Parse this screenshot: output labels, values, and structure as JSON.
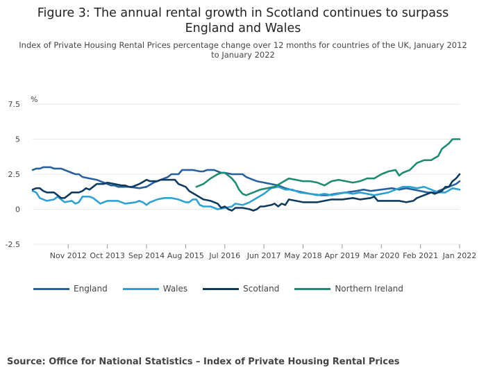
{
  "chart_data": {
    "type": "line",
    "title": "Figure 3: The annual rental growth in Scotland continues to surpass England and Wales",
    "subtitle": "Index of Private Housing Rental Prices percentage change over 12 months for countries of the UK, January 2012 to January 2022",
    "ylabel": "%",
    "xlabel": "",
    "ylim": [
      -2.5,
      7.5
    ],
    "yticks": [
      "-2.5",
      "0",
      "2.5",
      "5",
      "7.5"
    ],
    "yticks_values": [
      -2.5,
      0,
      2.5,
      5,
      7.5
    ],
    "xlim": [
      "2012-01",
      "2022-01"
    ],
    "xticks": [
      {
        "label": "Nov 2012",
        "month": "2012-11"
      },
      {
        "label": "Oct 2013",
        "month": "2013-10"
      },
      {
        "label": "Sep 2014",
        "month": "2014-09"
      },
      {
        "label": "Aug 2015",
        "month": "2015-08"
      },
      {
        "label": "Jul 2016",
        "month": "2016-07"
      },
      {
        "label": "Jun 2017",
        "month": "2017-06"
      },
      {
        "label": "May 2018",
        "month": "2018-05"
      },
      {
        "label": "Apr 2019",
        "month": "2019-04"
      },
      {
        "label": "Mar 2020",
        "month": "2020-03"
      },
      {
        "label": "Feb 2021",
        "month": "2021-02"
      },
      {
        "label": "Jan 2022",
        "month": "2022-01"
      }
    ],
    "grid": true,
    "legend_position": "bottom",
    "series": [
      {
        "name": "England",
        "color": "#27609b",
        "points": [
          [
            "2012-01",
            2.8
          ],
          [
            "2012-02",
            2.9
          ],
          [
            "2012-03",
            2.9
          ],
          [
            "2012-04",
            3.0
          ],
          [
            "2012-05",
            3.0
          ],
          [
            "2012-06",
            3.0
          ],
          [
            "2012-07",
            2.9
          ],
          [
            "2012-09",
            2.9
          ],
          [
            "2012-10",
            2.8
          ],
          [
            "2012-12",
            2.6
          ],
          [
            "2013-01",
            2.5
          ],
          [
            "2013-02",
            2.5
          ],
          [
            "2013-03",
            2.3
          ],
          [
            "2013-05",
            2.2
          ],
          [
            "2013-07",
            2.1
          ],
          [
            "2013-08",
            2.0
          ],
          [
            "2013-09",
            1.9
          ],
          [
            "2013-10",
            1.8
          ],
          [
            "2013-11",
            1.7
          ],
          [
            "2013-12",
            1.7
          ],
          [
            "2014-01",
            1.6
          ],
          [
            "2014-04",
            1.6
          ],
          [
            "2014-07",
            1.5
          ],
          [
            "2014-09",
            1.6
          ],
          [
            "2014-11",
            1.9
          ],
          [
            "2015-01",
            2.1
          ],
          [
            "2015-03",
            2.3
          ],
          [
            "2015-04",
            2.5
          ],
          [
            "2015-06",
            2.5
          ],
          [
            "2015-07",
            2.8
          ],
          [
            "2015-09",
            2.8
          ],
          [
            "2015-10",
            2.8
          ],
          [
            "2015-12",
            2.7
          ],
          [
            "2016-01",
            2.7
          ],
          [
            "2016-02",
            2.8
          ],
          [
            "2016-04",
            2.8
          ],
          [
            "2016-06",
            2.6
          ],
          [
            "2016-07",
            2.6
          ],
          [
            "2016-09",
            2.5
          ],
          [
            "2016-10",
            2.5
          ],
          [
            "2016-12",
            2.5
          ],
          [
            "2017-01",
            2.3
          ],
          [
            "2017-02",
            2.2
          ],
          [
            "2017-04",
            2.0
          ],
          [
            "2017-06",
            1.9
          ],
          [
            "2017-08",
            1.8
          ],
          [
            "2017-10",
            1.7
          ],
          [
            "2017-12",
            1.5
          ],
          [
            "2018-03",
            1.3
          ],
          [
            "2018-05",
            1.2
          ],
          [
            "2018-07",
            1.1
          ],
          [
            "2018-10",
            1.0
          ],
          [
            "2018-12",
            1.0
          ],
          [
            "2019-02",
            1.1
          ],
          [
            "2019-05",
            1.2
          ],
          [
            "2019-08",
            1.3
          ],
          [
            "2019-10",
            1.4
          ],
          [
            "2019-12",
            1.3
          ],
          [
            "2020-03",
            1.4
          ],
          [
            "2020-06",
            1.5
          ],
          [
            "2020-08",
            1.4
          ],
          [
            "2020-10",
            1.5
          ],
          [
            "2020-12",
            1.4
          ],
          [
            "2021-02",
            1.3
          ],
          [
            "2021-04",
            1.2
          ],
          [
            "2021-06",
            1.2
          ],
          [
            "2021-08",
            1.4
          ],
          [
            "2021-10",
            1.6
          ],
          [
            "2021-12",
            1.8
          ],
          [
            "2022-01",
            2.0
          ]
        ]
      },
      {
        "name": "Wales",
        "color": "#2ea1d4",
        "points": [
          [
            "2012-01",
            1.3
          ],
          [
            "2012-02",
            1.2
          ],
          [
            "2012-03",
            0.8
          ],
          [
            "2012-04",
            0.7
          ],
          [
            "2012-05",
            0.6
          ],
          [
            "2012-07",
            0.7
          ],
          [
            "2012-08",
            0.9
          ],
          [
            "2012-09",
            0.7
          ],
          [
            "2012-10",
            0.5
          ],
          [
            "2012-12",
            0.6
          ],
          [
            "2013-01",
            0.4
          ],
          [
            "2013-02",
            0.5
          ],
          [
            "2013-03",
            0.9
          ],
          [
            "2013-05",
            0.9
          ],
          [
            "2013-06",
            0.8
          ],
          [
            "2013-08",
            0.4
          ],
          [
            "2013-10",
            0.6
          ],
          [
            "2013-12",
            0.6
          ],
          [
            "2014-01",
            0.6
          ],
          [
            "2014-03",
            0.4
          ],
          [
            "2014-06",
            0.5
          ],
          [
            "2014-07",
            0.6
          ],
          [
            "2014-08",
            0.5
          ],
          [
            "2014-09",
            0.3
          ],
          [
            "2014-10",
            0.5
          ],
          [
            "2014-12",
            0.7
          ],
          [
            "2015-02",
            0.8
          ],
          [
            "2015-04",
            0.8
          ],
          [
            "2015-06",
            0.7
          ],
          [
            "2015-08",
            0.5
          ],
          [
            "2015-09",
            0.5
          ],
          [
            "2015-10",
            0.7
          ],
          [
            "2015-11",
            0.7
          ],
          [
            "2015-12",
            0.3
          ],
          [
            "2016-01",
            0.2
          ],
          [
            "2016-03",
            0.2
          ],
          [
            "2016-05",
            0.0
          ],
          [
            "2016-07",
            0.1
          ],
          [
            "2016-09",
            0.2
          ],
          [
            "2016-10",
            0.4
          ],
          [
            "2016-12",
            0.3
          ],
          [
            "2017-02",
            0.5
          ],
          [
            "2017-04",
            0.8
          ],
          [
            "2017-06",
            1.1
          ],
          [
            "2017-08",
            1.5
          ],
          [
            "2017-10",
            1.6
          ],
          [
            "2017-12",
            1.4
          ],
          [
            "2018-02",
            1.4
          ],
          [
            "2018-04",
            1.2
          ],
          [
            "2018-07",
            1.1
          ],
          [
            "2018-09",
            1.0
          ],
          [
            "2018-11",
            1.1
          ],
          [
            "2019-01",
            1.0
          ],
          [
            "2019-03",
            1.1
          ],
          [
            "2019-05",
            1.2
          ],
          [
            "2019-07",
            1.1
          ],
          [
            "2019-09",
            1.2
          ],
          [
            "2019-11",
            1.1
          ],
          [
            "2020-01",
            1.0
          ],
          [
            "2020-03",
            1.1
          ],
          [
            "2020-05",
            1.2
          ],
          [
            "2020-07",
            1.4
          ],
          [
            "2020-09",
            1.6
          ],
          [
            "2020-11",
            1.6
          ],
          [
            "2021-01",
            1.5
          ],
          [
            "2021-03",
            1.6
          ],
          [
            "2021-05",
            1.4
          ],
          [
            "2021-07",
            1.2
          ],
          [
            "2021-09",
            1.2
          ],
          [
            "2021-11",
            1.5
          ],
          [
            "2022-01",
            1.4
          ]
        ]
      },
      {
        "name": "Scotland",
        "color": "#0f3b5f",
        "points": [
          [
            "2012-01",
            1.4
          ],
          [
            "2012-02",
            1.5
          ],
          [
            "2012-03",
            1.5
          ],
          [
            "2012-04",
            1.3
          ],
          [
            "2012-05",
            1.2
          ],
          [
            "2012-07",
            1.2
          ],
          [
            "2012-08",
            1.0
          ],
          [
            "2012-09",
            0.8
          ],
          [
            "2012-10",
            0.8
          ],
          [
            "2012-11",
            1.0
          ],
          [
            "2012-12",
            1.2
          ],
          [
            "2013-02",
            1.2
          ],
          [
            "2013-03",
            1.3
          ],
          [
            "2013-04",
            1.5
          ],
          [
            "2013-05",
            1.4
          ],
          [
            "2013-06",
            1.6
          ],
          [
            "2013-07",
            1.8
          ],
          [
            "2013-09",
            1.8
          ],
          [
            "2013-10",
            1.9
          ],
          [
            "2013-12",
            1.8
          ],
          [
            "2014-02",
            1.7
          ],
          [
            "2014-03",
            1.7
          ],
          [
            "2014-04",
            1.6
          ],
          [
            "2014-05",
            1.6
          ],
          [
            "2014-07",
            1.8
          ],
          [
            "2014-09",
            2.1
          ],
          [
            "2014-10",
            2.0
          ],
          [
            "2014-12",
            2.0
          ],
          [
            "2015-01",
            2.1
          ],
          [
            "2015-03",
            2.1
          ],
          [
            "2015-05",
            2.1
          ],
          [
            "2015-06",
            1.8
          ],
          [
            "2015-07",
            1.7
          ],
          [
            "2015-08",
            1.6
          ],
          [
            "2015-09",
            1.3
          ],
          [
            "2015-11",
            1.0
          ],
          [
            "2016-01",
            0.7
          ],
          [
            "2016-03",
            0.6
          ],
          [
            "2016-05",
            0.4
          ],
          [
            "2016-06",
            0.1
          ],
          [
            "2016-07",
            0.2
          ],
          [
            "2016-08",
            0.0
          ],
          [
            "2016-09",
            -0.1
          ],
          [
            "2016-10",
            0.1
          ],
          [
            "2016-12",
            0.1
          ],
          [
            "2017-02",
            0.0
          ],
          [
            "2017-03",
            -0.1
          ],
          [
            "2017-04",
            0.0
          ],
          [
            "2017-05",
            0.2
          ],
          [
            "2017-06",
            0.2
          ],
          [
            "2017-08",
            0.3
          ],
          [
            "2017-09",
            0.4
          ],
          [
            "2017-10",
            0.2
          ],
          [
            "2017-11",
            0.4
          ],
          [
            "2017-12",
            0.3
          ],
          [
            "2018-01",
            0.7
          ],
          [
            "2018-03",
            0.6
          ],
          [
            "2018-05",
            0.5
          ],
          [
            "2018-07",
            0.5
          ],
          [
            "2018-09",
            0.5
          ],
          [
            "2018-11",
            0.6
          ],
          [
            "2019-01",
            0.7
          ],
          [
            "2019-04",
            0.7
          ],
          [
            "2019-07",
            0.8
          ],
          [
            "2019-09",
            0.7
          ],
          [
            "2019-12",
            0.8
          ],
          [
            "2020-01",
            0.9
          ],
          [
            "2020-02",
            0.6
          ],
          [
            "2020-04",
            0.6
          ],
          [
            "2020-06",
            0.6
          ],
          [
            "2020-08",
            0.6
          ],
          [
            "2020-10",
            0.5
          ],
          [
            "2020-12",
            0.6
          ],
          [
            "2021-01",
            0.8
          ],
          [
            "2021-03",
            1.0
          ],
          [
            "2021-05",
            1.2
          ],
          [
            "2021-06",
            1.1
          ],
          [
            "2021-08",
            1.3
          ],
          [
            "2021-09",
            1.6
          ],
          [
            "2021-10",
            1.6
          ],
          [
            "2021-11",
            2.0
          ],
          [
            "2021-12",
            2.2
          ],
          [
            "2022-01",
            2.5
          ]
        ]
      },
      {
        "name": "Northern Ireland",
        "color": "#1e8a72",
        "points": [
          [
            "2015-11",
            1.6
          ],
          [
            "2016-01",
            1.8
          ],
          [
            "2016-03",
            2.2
          ],
          [
            "2016-05",
            2.5
          ],
          [
            "2016-06",
            2.6
          ],
          [
            "2016-07",
            2.6
          ],
          [
            "2016-08",
            2.4
          ],
          [
            "2016-09",
            2.2
          ],
          [
            "2016-10",
            1.9
          ],
          [
            "2016-11",
            1.4
          ],
          [
            "2016-12",
            1.1
          ],
          [
            "2017-01",
            1.0
          ],
          [
            "2017-03",
            1.2
          ],
          [
            "2017-05",
            1.4
          ],
          [
            "2017-07",
            1.5
          ],
          [
            "2017-09",
            1.6
          ],
          [
            "2017-11",
            1.9
          ],
          [
            "2018-01",
            2.2
          ],
          [
            "2018-03",
            2.1
          ],
          [
            "2018-05",
            2.0
          ],
          [
            "2018-07",
            2.0
          ],
          [
            "2018-09",
            1.9
          ],
          [
            "2018-11",
            1.7
          ],
          [
            "2019-01",
            2.0
          ],
          [
            "2019-03",
            2.1
          ],
          [
            "2019-05",
            2.0
          ],
          [
            "2019-07",
            1.9
          ],
          [
            "2019-09",
            2.0
          ],
          [
            "2019-11",
            2.2
          ],
          [
            "2020-01",
            2.2
          ],
          [
            "2020-03",
            2.5
          ],
          [
            "2020-05",
            2.7
          ],
          [
            "2020-07",
            2.8
          ],
          [
            "2020-08",
            2.4
          ],
          [
            "2020-09",
            2.6
          ],
          [
            "2020-11",
            2.8
          ],
          [
            "2021-01",
            3.3
          ],
          [
            "2021-03",
            3.5
          ],
          [
            "2021-05",
            3.5
          ],
          [
            "2021-07",
            3.8
          ],
          [
            "2021-08",
            4.3
          ],
          [
            "2021-09",
            4.5
          ],
          [
            "2021-10",
            4.7
          ],
          [
            "2021-11",
            5.0
          ],
          [
            "2022-01",
            5.0
          ]
        ]
      }
    ]
  },
  "source": "Source: Office for National Statistics – Index of Private Housing Rental Prices"
}
